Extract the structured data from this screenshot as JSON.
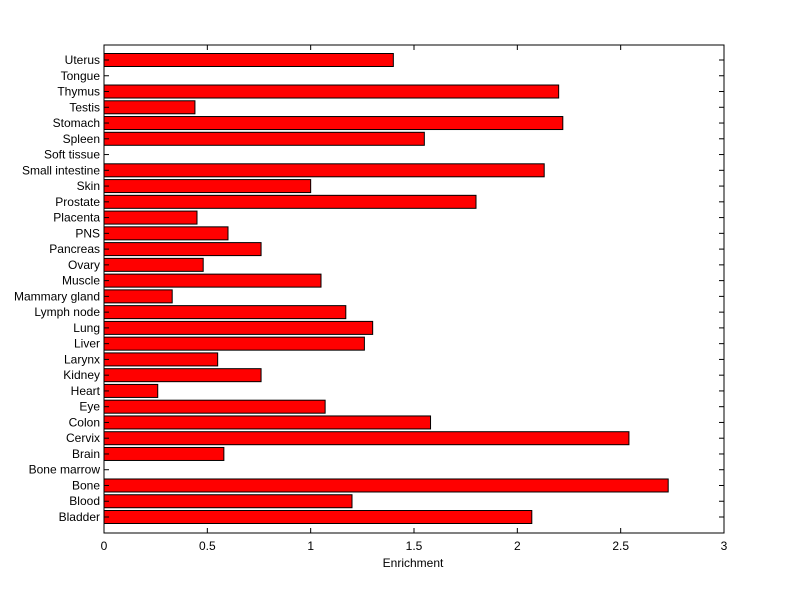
{
  "chart_data": {
    "type": "bar",
    "orientation": "horizontal",
    "title": "",
    "xlabel": "Enrichment",
    "ylabel": "",
    "xlim": [
      0,
      3
    ],
    "xticks": [
      "0",
      "0.5",
      "1",
      "1.5",
      "2",
      "2.5",
      "3"
    ],
    "grid": false,
    "legend": "none",
    "bar_color": "#ff0000",
    "categories": [
      "Bladder",
      "Blood",
      "Bone",
      "Bone marrow",
      "Brain",
      "Cervix",
      "Colon",
      "Eye",
      "Heart",
      "Kidney",
      "Larynx",
      "Liver",
      "Lung",
      "Lymph node",
      "Mammary gland",
      "Muscle",
      "Ovary",
      "Pancreas",
      "PNS",
      "Placenta",
      "Prostate",
      "Skin",
      "Small intestine",
      "Soft tissue",
      "Spleen",
      "Stomach",
      "Testis",
      "Thymus",
      "Tongue",
      "Uterus"
    ],
    "values": [
      2.07,
      1.2,
      2.73,
      0,
      0.58,
      2.54,
      1.58,
      1.07,
      0.26,
      0.76,
      0.55,
      1.26,
      1.3,
      1.17,
      0.33,
      1.05,
      0.48,
      0.76,
      0.6,
      0.45,
      1.8,
      1.0,
      2.13,
      0,
      1.55,
      2.22,
      0.44,
      2.2,
      0,
      1.4
    ]
  }
}
